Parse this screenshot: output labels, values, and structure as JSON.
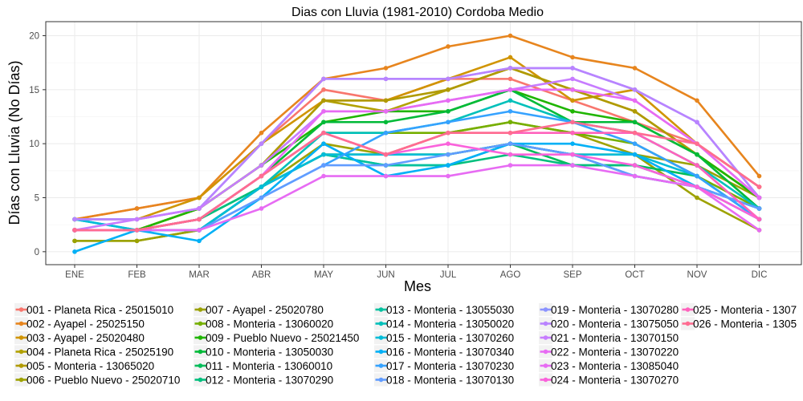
{
  "chart_data": {
    "type": "line",
    "title": "Dias con Lluvia (1981-2010)  Cordoba Medio",
    "xlabel": "Mes",
    "ylabel": "Días con Lluvia (No Días)",
    "categories": [
      "ENE",
      "FEB",
      "MAR",
      "ABR",
      "MAY",
      "JUN",
      "JUL",
      "AGO",
      "SEP",
      "OCT",
      "NOV",
      "DIC"
    ],
    "ylim": [
      -1.2,
      21.3
    ],
    "yticks": [
      0,
      5,
      10,
      15,
      20
    ],
    "grid": true,
    "legend_position": "bottom",
    "series": [
      {
        "name": "001 - Planeta Rica - 25015010",
        "color": "#F8766D",
        "values": [
          3,
          4,
          5,
          10,
          15,
          14,
          16,
          16,
          14,
          12,
          10,
          6
        ]
      },
      {
        "name": "002 - Ayapel - 25025150",
        "color": "#E7851E",
        "values": [
          3,
          4,
          5,
          11,
          16,
          17,
          19,
          20,
          18,
          17,
          14,
          7
        ]
      },
      {
        "name": "003 - Ayapel - 25020480",
        "color": "#D09400",
        "values": [
          3,
          3,
          5,
          10,
          14,
          14,
          16,
          18,
          14,
          15,
          10,
          6
        ]
      },
      {
        "name": "004 - Planeta Rica - 25025190",
        "color": "#B2A100",
        "values": [
          2,
          2,
          4,
          8,
          14,
          13,
          15,
          17,
          15,
          13,
          9,
          5
        ]
      },
      {
        "name": "005 - Monteria - 13065020",
        "color": "#B09A00",
        "values": [
          2,
          2,
          4,
          8,
          14,
          14,
          15,
          17,
          15,
          13,
          9,
          5
        ]
      },
      {
        "name": "006 - Pueblo Nuevo - 25020710",
        "color": "#9EA200",
        "values": [
          1,
          1,
          2,
          6,
          10,
          9,
          11,
          12,
          11,
          9,
          5,
          2
        ]
      },
      {
        "name": "007 - Ayapel - 25020780",
        "color": "#9AA100",
        "values": [
          1,
          1,
          2,
          6,
          9,
          9,
          9,
          10,
          9,
          9,
          8,
          5
        ]
      },
      {
        "name": "008 - Monteria - 13060020",
        "color": "#75AF00",
        "values": [
          2,
          2,
          3,
          7,
          11,
          11,
          11,
          12,
          11,
          10,
          7,
          4
        ]
      },
      {
        "name": "009 - Pueblo Nuevo - 25021450",
        "color": "#1FB500",
        "values": [
          2,
          2,
          4,
          8,
          12,
          13,
          13,
          15,
          13,
          12,
          9,
          5
        ]
      },
      {
        "name": "010 - Monteria - 13050030",
        "color": "#00BA38",
        "values": [
          2,
          2,
          3,
          7,
          12,
          12,
          13,
          15,
          12,
          12,
          9,
          4
        ]
      },
      {
        "name": "011 - Monteria - 13060010",
        "color": "#00BC59",
        "values": [
          2,
          2,
          3,
          6,
          9,
          9,
          9,
          10,
          8,
          8,
          7,
          3
        ]
      },
      {
        "name": "012 - Monteria - 13070290",
        "color": "#00BF7D",
        "values": [
          2,
          2,
          3,
          6,
          9,
          8,
          8,
          9,
          8,
          8,
          6,
          4
        ]
      },
      {
        "name": "013 - Monteria - 13055030",
        "color": "#00C19F",
        "values": [
          2,
          2,
          2,
          6,
          9,
          8,
          8,
          10,
          9,
          7,
          6,
          3
        ]
      },
      {
        "name": "014 - Monteria - 13050020",
        "color": "#00C0BA",
        "values": [
          3,
          2,
          2,
          6,
          11,
          11,
          12,
          14,
          12,
          11,
          8,
          4
        ]
      },
      {
        "name": "015 - Monteria - 13070260",
        "color": "#00BCD8",
        "values": [
          3,
          2,
          2,
          6,
          9,
          9,
          9,
          10,
          9,
          9,
          7,
          3
        ]
      },
      {
        "name": "016 - Monteria - 13070340",
        "color": "#00B0F6",
        "values": [
          0,
          2,
          1,
          5,
          10,
          7,
          8,
          10,
          10,
          9,
          6,
          4
        ]
      },
      {
        "name": "017 - Monteria - 13070230",
        "color": "#35A2FF",
        "values": [
          2,
          2,
          2,
          5,
          8,
          11,
          12,
          13,
          12,
          10,
          7,
          3
        ]
      },
      {
        "name": "018 - Monteria - 13070130",
        "color": "#619CFF",
        "values": [
          2,
          2,
          2,
          5,
          8,
          8,
          9,
          10,
          9,
          7,
          6,
          4
        ]
      },
      {
        "name": "019 - Monteria - 13070280",
        "color": "#8B93FF",
        "values": [
          3,
          3,
          4,
          10,
          16,
          16,
          16,
          17,
          17,
          15,
          12,
          5
        ]
      },
      {
        "name": "020 - Monteria - 13075050",
        "color": "#B983FF",
        "values": [
          3,
          3,
          4,
          10,
          16,
          16,
          16,
          17,
          17,
          15,
          12,
          5
        ]
      },
      {
        "name": "021 - Monteria - 13070150",
        "color": "#C77CFF",
        "values": [
          2,
          3,
          4,
          8,
          13,
          13,
          14,
          15,
          16,
          14,
          10,
          5
        ]
      },
      {
        "name": "022 - Monteria - 13070220",
        "color": "#E76BF3",
        "values": [
          2,
          2,
          3,
          7,
          13,
          13,
          14,
          15,
          15,
          14,
          10,
          5
        ]
      },
      {
        "name": "023 - Monteria - 13085040",
        "color": "#E76BF3",
        "values": [
          2,
          2,
          2,
          4,
          7,
          7,
          7,
          8,
          8,
          7,
          6,
          2
        ]
      },
      {
        "name": "024 - Monteria - 13070270",
        "color": "#FA62DB",
        "values": [
          2,
          2,
          3,
          7,
          11,
          9,
          10,
          9,
          9,
          8,
          6,
          3
        ]
      },
      {
        "name": "025 - Monteria - 1307",
        "color": "#FF62BC",
        "values": [
          2,
          2,
          3,
          7,
          11,
          9,
          11,
          11,
          11,
          11,
          8,
          3
        ]
      },
      {
        "name": "026 - Monteria - 1305",
        "color": "#FF6C91",
        "values": [
          2,
          2,
          3,
          7,
          11,
          9,
          11,
          11,
          12,
          11,
          10,
          6
        ]
      }
    ]
  }
}
